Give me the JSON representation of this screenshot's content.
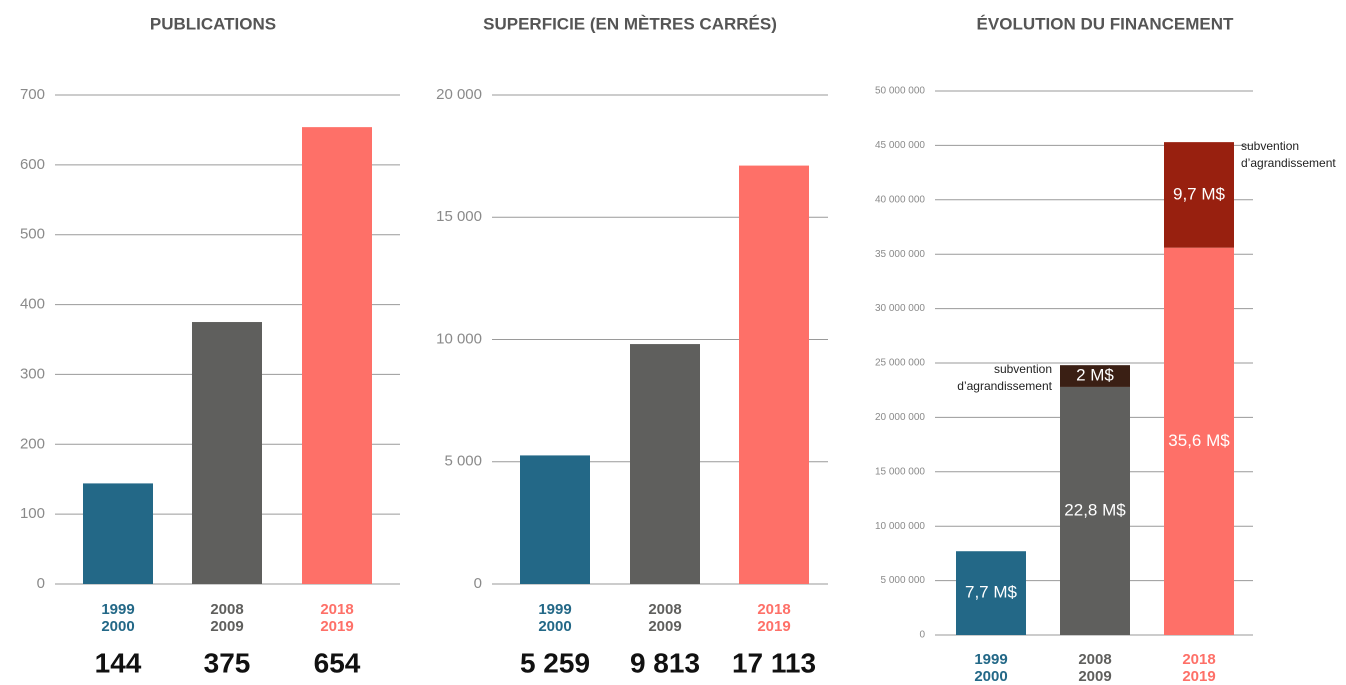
{
  "chart_data": [
    {
      "type": "bar",
      "title": "PUBLICATIONS",
      "categories": [
        [
          "1999",
          "2000"
        ],
        [
          "2008",
          "2009"
        ],
        [
          "2018",
          "2019"
        ]
      ],
      "values": [
        144,
        375,
        654
      ],
      "colors": [
        "#236887",
        "#5f5f5d",
        "#fe7068"
      ],
      "ylim": [
        0,
        700
      ],
      "yticks": [
        0,
        100,
        200,
        300,
        400,
        500,
        600,
        700
      ],
      "grid": true
    },
    {
      "type": "bar",
      "title": "SUPERFICIE (EN MÈTRES CARRÉS)",
      "categories": [
        [
          "1999",
          "2000"
        ],
        [
          "2008",
          "2009"
        ],
        [
          "2018",
          "2019"
        ]
      ],
      "values": [
        5259,
        9813,
        17113
      ],
      "value_labels": [
        "5 259",
        "9 813",
        "17 113"
      ],
      "colors": [
        "#236887",
        "#5f5f5d",
        "#fe7068"
      ],
      "ylim": [
        0,
        20000
      ],
      "yticks": [
        0,
        {
          "value": 5000,
          "label": "5 000"
        },
        {
          "value": 10000,
          "label": "10 000"
        },
        {
          "value": 15000,
          "label": "15 000"
        },
        {
          "value": 20000,
          "label": "20 000"
        }
      ],
      "grid": true
    },
    {
      "type": "stacked_bar",
      "title": "ÉVOLUTION DU FINANCEMENT",
      "categories": [
        [
          "1999",
          "2000"
        ],
        [
          "2008",
          "2009"
        ],
        [
          "2018",
          "2019"
        ]
      ],
      "series": [
        {
          "colors": [
            "#236887",
            "#5f5f5d",
            "#fe7068"
          ],
          "values": [
            7700000,
            22800000,
            35600000
          ],
          "value_labels": [
            "7,7 M$",
            "22,8 M$",
            "35,6 M$"
          ]
        },
        {
          "name": "subvention d’agrandissement",
          "colors": [
            null,
            "#3a1f14",
            "#98200f"
          ],
          "values": [
            null,
            2000000,
            9700000
          ],
          "value_labels": [
            null,
            "2 M$",
            "9,7 M$"
          ]
        }
      ],
      "ylim": [
        0,
        50000000
      ],
      "yticks": [
        0,
        {
          "value": 5000000,
          "label": "5 000 000"
        },
        {
          "value": 10000000,
          "label": "10 000 000"
        },
        {
          "value": 15000000,
          "label": "15 000 000"
        },
        {
          "value": 20000000,
          "label": "20 000 000"
        },
        {
          "value": 25000000,
          "label": "25 000 000"
        },
        {
          "value": 30000000,
          "label": "30 000 000"
        },
        {
          "value": 35000000,
          "label": "35 000 000"
        },
        {
          "value": 40000000,
          "label": "40 000 000"
        },
        {
          "value": 45000000,
          "label": "45 000 000"
        },
        {
          "value": 50000000,
          "label": "50 000 000"
        }
      ],
      "grid": true
    }
  ]
}
